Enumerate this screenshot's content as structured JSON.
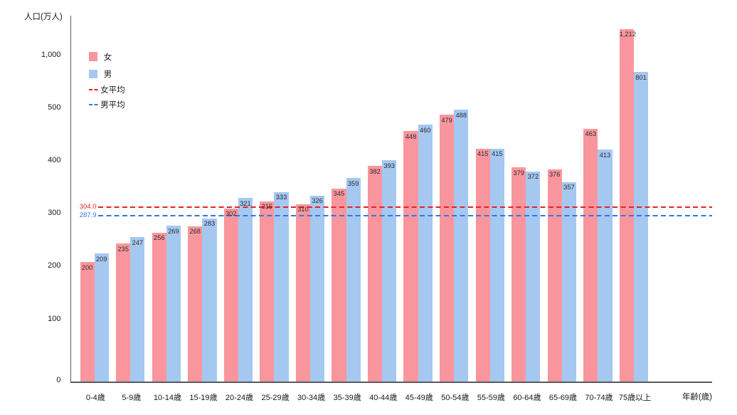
{
  "chart_data": {
    "type": "bar",
    "title": "",
    "ylabel": "人口(万人)",
    "xlabel": "年齢(歳)",
    "categories": [
      "0-4歳",
      "5-9歳",
      "10-14歳",
      "15-19歳",
      "20-24歳",
      "25-29歳",
      "30-34歳",
      "35-39歳",
      "40-44歳",
      "45-49歳",
      "50-54歳",
      "55-59歳",
      "60-64歳",
      "65-69歳",
      "70-74歳",
      "75歳以上"
    ],
    "series": [
      {
        "name": "女",
        "color": "#F9969D",
        "values": [
          200,
          235,
          256,
          268,
          302,
          315,
          310,
          345,
          382,
          448,
          479,
          415,
          379,
          376,
          463,
          1212
        ]
      },
      {
        "name": "男",
        "color": "#A5C8F1",
        "values": [
          209,
          247,
          269,
          283,
          321,
          333,
          326,
          359,
          393,
          460,
          488,
          415,
          372,
          357,
          413,
          801
        ]
      }
    ],
    "averages": [
      {
        "name": "女平均",
        "label": "304.0",
        "value": 304.0,
        "color": "#E32227"
      },
      {
        "name": "男平均",
        "label": "287.9",
        "value": 287.9,
        "color": "#3575E0"
      }
    ],
    "y_ticks": [
      {
        "value": 0,
        "label": "0"
      },
      {
        "value": 100,
        "label": "100"
      },
      {
        "value": 200,
        "label": "200"
      },
      {
        "value": 300,
        "label": "300"
      },
      {
        "value": 400,
        "label": "400"
      },
      {
        "value": 500,
        "label": "500"
      },
      {
        "value": 1000,
        "label": "1,000"
      }
    ],
    "legend_position": "top-left",
    "grid": false
  }
}
